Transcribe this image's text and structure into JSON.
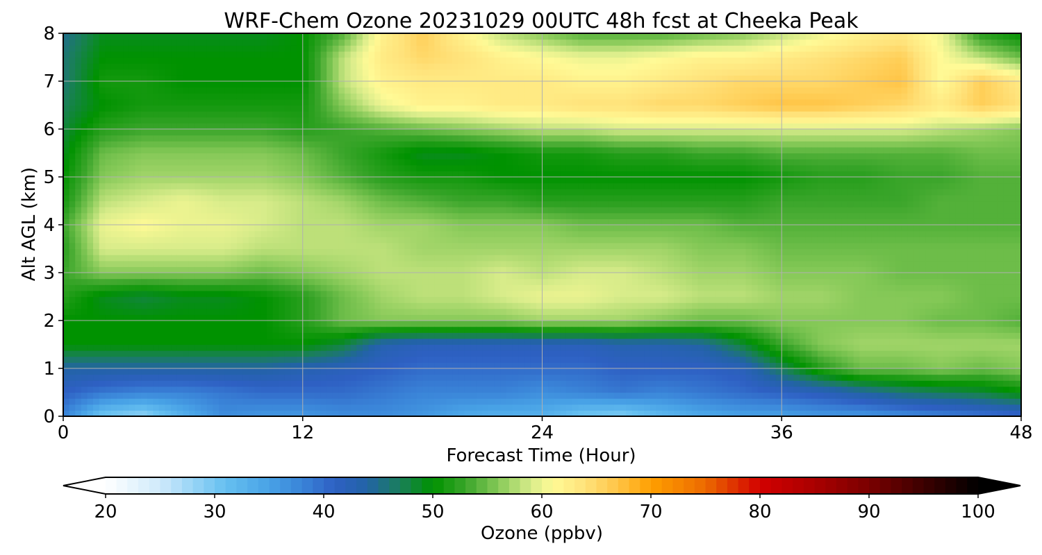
{
  "chart_data": {
    "type": "heatmap",
    "title": "WRF-Chem Ozone  20231029 00UTC 48h fcst at Cheeka Peak",
    "xlabel": "Forecast Time (Hour)",
    "ylabel": "Alt AGL (km)",
    "xlim": [
      0,
      48
    ],
    "ylim": [
      0,
      8
    ],
    "x_ticks": [
      0,
      12,
      24,
      36,
      48
    ],
    "y_ticks": [
      0,
      1,
      2,
      3,
      4,
      5,
      6,
      7,
      8
    ],
    "grid": true,
    "colorbar": {
      "label": "Ozone  (ppbv)",
      "range": [
        20,
        100
      ],
      "ticks": [
        20,
        30,
        40,
        50,
        60,
        70,
        80,
        90,
        100
      ],
      "extend": "both",
      "orientation": "horizontal",
      "placement": "bottom",
      "colors": [
        {
          "value": 20,
          "color": "#ffffff"
        },
        {
          "value": 25,
          "color": "#cfeafb"
        },
        {
          "value": 28,
          "color": "#98d4f6"
        },
        {
          "value": 31,
          "color": "#66c0f0"
        },
        {
          "value": 35,
          "color": "#48a2e6"
        },
        {
          "value": 38,
          "color": "#3a84d8"
        },
        {
          "value": 41,
          "color": "#2e60c3"
        },
        {
          "value": 44,
          "color": "#2263a6"
        },
        {
          "value": 47,
          "color": "#1a7f5a"
        },
        {
          "value": 50,
          "color": "#009200"
        },
        {
          "value": 53,
          "color": "#3aa52a"
        },
        {
          "value": 56,
          "color": "#86c958"
        },
        {
          "value": 59,
          "color": "#d8ec8a"
        },
        {
          "value": 61,
          "color": "#fffa96"
        },
        {
          "value": 64,
          "color": "#ffe27a"
        },
        {
          "value": 67,
          "color": "#ffc446"
        },
        {
          "value": 70,
          "color": "#ff9f00"
        },
        {
          "value": 75,
          "color": "#ec6a00"
        },
        {
          "value": 80,
          "color": "#d20000"
        },
        {
          "value": 85,
          "color": "#aa0000"
        },
        {
          "value": 90,
          "color": "#7a0000"
        },
        {
          "value": 95,
          "color": "#3c0000"
        },
        {
          "value": 100,
          "color": "#000000"
        }
      ]
    },
    "x": [
      0,
      2,
      4,
      6,
      8,
      10,
      12,
      14,
      16,
      18,
      20,
      22,
      24,
      26,
      28,
      30,
      32,
      34,
      36,
      38,
      40,
      42,
      44,
      46,
      48
    ],
    "y": [
      0,
      0.5,
      1,
      1.5,
      2,
      2.5,
      3,
      3.5,
      4,
      4.5,
      5,
      5.5,
      6,
      6.5,
      7,
      7.5,
      8
    ],
    "z": [
      [
        38,
        30,
        28,
        33,
        37,
        36,
        36,
        37,
        37,
        36,
        34,
        33,
        33,
        30,
        29,
        32,
        34,
        35,
        35,
        36,
        36,
        37,
        38,
        39,
        40
      ],
      [
        41,
        39,
        38,
        38,
        39,
        40,
        40,
        40,
        39,
        38,
        38,
        38,
        37,
        38,
        39,
        38,
        39,
        40,
        41,
        42,
        44,
        46,
        47,
        48,
        50
      ],
      [
        44,
        44,
        44,
        44,
        44,
        44,
        43,
        42,
        41,
        40,
        40,
        40,
        40,
        40,
        41,
        41,
        41,
        42,
        47,
        52,
        55,
        55,
        56,
        55,
        56
      ],
      [
        50,
        50,
        50,
        50,
        50,
        50,
        50,
        48,
        43,
        42,
        42,
        42,
        42,
        42,
        43,
        43,
        44,
        48,
        53,
        56,
        57,
        57,
        57,
        57,
        57
      ],
      [
        50,
        50,
        50,
        50,
        50,
        50,
        52,
        55,
        56,
        56,
        56,
        56,
        57,
        57,
        57,
        56,
        55,
        55,
        56,
        56,
        56,
        56,
        55,
        55,
        54
      ],
      [
        52,
        49,
        48,
        49,
        49,
        50,
        52,
        55,
        57,
        58,
        58,
        59,
        60,
        60,
        59,
        59,
        58,
        58,
        57,
        57,
        56,
        56,
        56,
        55,
        55
      ],
      [
        53,
        56,
        56,
        56,
        56,
        55,
        56,
        57,
        58,
        58,
        58,
        59,
        58,
        59,
        59,
        58,
        57,
        57,
        56,
        56,
        56,
        55,
        55,
        55,
        55
      ],
      [
        52,
        59,
        59,
        59,
        59,
        58,
        58,
        58,
        58,
        57,
        57,
        57,
        57,
        57,
        57,
        57,
        56,
        56,
        55,
        55,
        55,
        55,
        55,
        55,
        55
      ],
      [
        53,
        60,
        61,
        60,
        60,
        59,
        58,
        58,
        57,
        57,
        56,
        56,
        56,
        55,
        55,
        55,
        55,
        54,
        54,
        54,
        54,
        54,
        54,
        54,
        54
      ],
      [
        51,
        58,
        59,
        60,
        59,
        59,
        58,
        57,
        55,
        54,
        53,
        53,
        52,
        52,
        52,
        52,
        52,
        52,
        53,
        53,
        53,
        53,
        54,
        54,
        54
      ],
      [
        50,
        56,
        57,
        57,
        57,
        57,
        56,
        54,
        52,
        51,
        51,
        50,
        50,
        50,
        50,
        50,
        50,
        50,
        51,
        52,
        52,
        53,
        53,
        54,
        54
      ],
      [
        49,
        55,
        56,
        56,
        56,
        56,
        55,
        53,
        51,
        49,
        49,
        50,
        51,
        51,
        52,
        52,
        53,
        53,
        54,
        54,
        54,
        54,
        54,
        55,
        55
      ],
      [
        48,
        52,
        53,
        53,
        53,
        53,
        52,
        53,
        54,
        55,
        56,
        57,
        58,
        58,
        59,
        59,
        59,
        59,
        59,
        59,
        59,
        59,
        58,
        57,
        56
      ],
      [
        47,
        50,
        51,
        51,
        51,
        51,
        51,
        56,
        60,
        62,
        62,
        63,
        63,
        64,
        64,
        65,
        65,
        66,
        67,
        67,
        66,
        65,
        63,
        66,
        64
      ],
      [
        46,
        51,
        51,
        50,
        50,
        50,
        50,
        58,
        62,
        63,
        63,
        63,
        63,
        62,
        62,
        63,
        64,
        65,
        65,
        65,
        66,
        67,
        61,
        66,
        63
      ],
      [
        46,
        50,
        50,
        50,
        50,
        50,
        50,
        58,
        63,
        65,
        64,
        62,
        61,
        60,
        60,
        61,
        62,
        62,
        63,
        64,
        65,
        66,
        61,
        58,
        55
      ],
      [
        45,
        49,
        49,
        49,
        49,
        49,
        50,
        54,
        62,
        66,
        62,
        58,
        56,
        54,
        54,
        54,
        55,
        56,
        58,
        60,
        62,
        63,
        60,
        52,
        50
      ]
    ]
  }
}
